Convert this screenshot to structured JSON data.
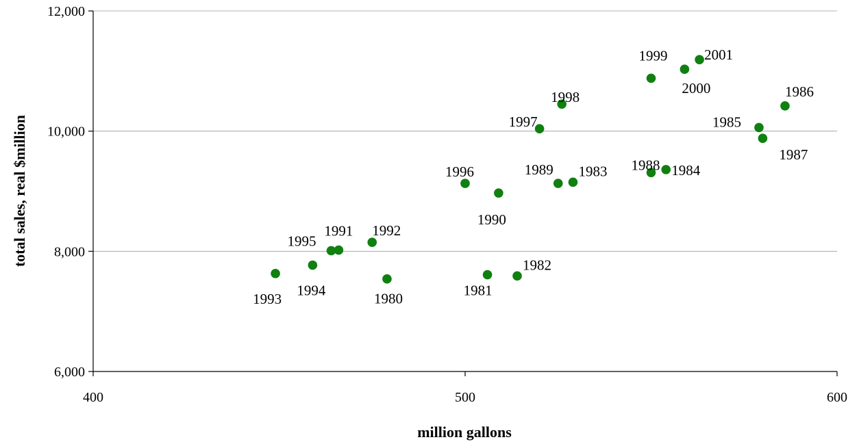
{
  "chart_data": {
    "type": "scatter",
    "title": "",
    "xlabel": "million gallons",
    "ylabel": "total sales, real $million",
    "xlim": [
      400,
      600
    ],
    "ylim": [
      6000,
      12000
    ],
    "x_ticks": [
      400,
      500,
      600
    ],
    "x_tick_labels": [
      "400",
      "500",
      "600"
    ],
    "y_ticks": [
      6000,
      8000,
      10000,
      12000
    ],
    "y_tick_labels": [
      "6,000",
      "8,000",
      "10,000",
      "12,000"
    ],
    "gridlines": "horizontal",
    "legend": "none",
    "point_color": "#108010",
    "points": [
      {
        "label": "1980",
        "x": 479,
        "y": 7540
      },
      {
        "label": "1981",
        "x": 506,
        "y": 7610
      },
      {
        "label": "1982",
        "x": 514,
        "y": 7590
      },
      {
        "label": "1983",
        "x": 529,
        "y": 9150
      },
      {
        "label": "1984",
        "x": 554,
        "y": 9360
      },
      {
        "label": "1985",
        "x": 579,
        "y": 10060
      },
      {
        "label": "1986",
        "x": 586,
        "y": 10420
      },
      {
        "label": "1987",
        "x": 580,
        "y": 9880
      },
      {
        "label": "1988",
        "x": 550,
        "y": 9310
      },
      {
        "label": "1989",
        "x": 525,
        "y": 9130
      },
      {
        "label": "1990",
        "x": 509,
        "y": 8970
      },
      {
        "label": "1991",
        "x": 466,
        "y": 8020
      },
      {
        "label": "1992",
        "x": 475,
        "y": 8150
      },
      {
        "label": "1993",
        "x": 449,
        "y": 7630
      },
      {
        "label": "1994",
        "x": 459,
        "y": 7770
      },
      {
        "label": "1995",
        "x": 464,
        "y": 8010
      },
      {
        "label": "1996",
        "x": 500,
        "y": 9130
      },
      {
        "label": "1997",
        "x": 520,
        "y": 10040
      },
      {
        "label": "1998",
        "x": 526,
        "y": 10450
      },
      {
        "label": "1999",
        "x": 550,
        "y": 10880
      },
      {
        "label": "2000",
        "x": 559,
        "y": 11030
      },
      {
        "label": "2001",
        "x": 563,
        "y": 11190
      }
    ]
  }
}
